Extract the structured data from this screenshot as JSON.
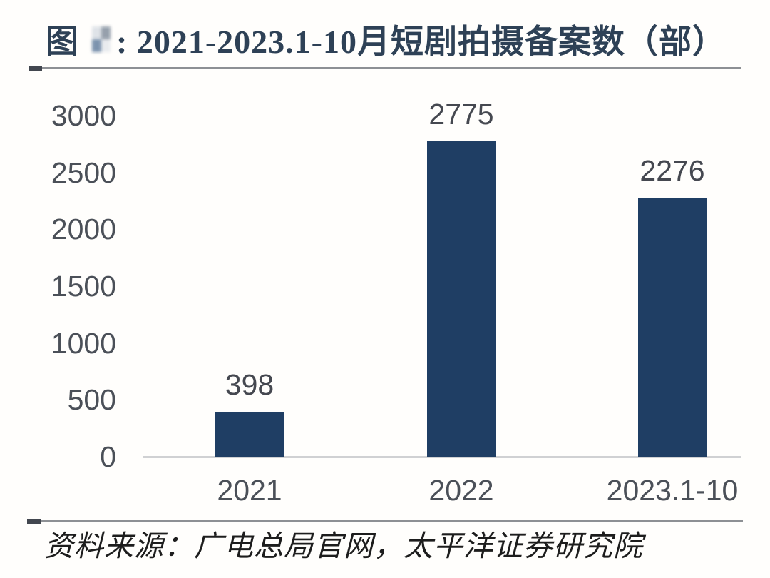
{
  "title": {
    "prefix": "图",
    "text": ": 2021-2023.1-10月短剧拍摄备案数（部）",
    "color": "#2e4156"
  },
  "chart_data": {
    "type": "bar",
    "title": "2021-2023.1-10月短剧拍摄备案数（部）",
    "categories": [
      "2021",
      "2022",
      "2023.1-10"
    ],
    "values": [
      398,
      2775,
      2276
    ],
    "yticks": [
      3000,
      2500,
      2000,
      1500,
      1000,
      500,
      0
    ],
    "ylim": [
      0,
      3000
    ],
    "xlabel": "",
    "ylabel": "",
    "grid": false,
    "legend": false,
    "data_labels_shown": true,
    "bar_color": "#1f3e64"
  },
  "footer": {
    "source_text": "资料来源：广电总局官网，太平洋证券研究院"
  }
}
